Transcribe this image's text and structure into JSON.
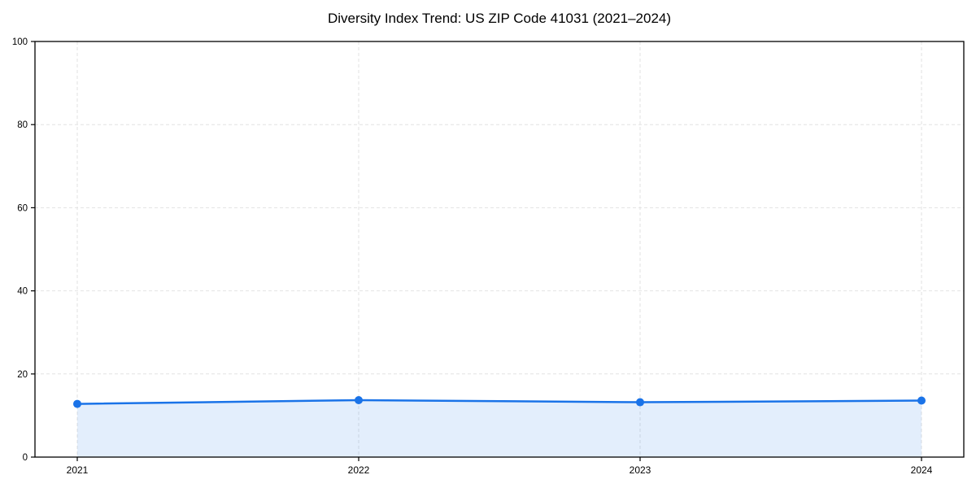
{
  "figure": {
    "background": "#ffffff"
  },
  "chart_data": {
    "type": "area",
    "title": "Diversity Index Trend: US ZIP Code 41031 (2021–2024)",
    "categories": [
      "2021",
      "2022",
      "2023",
      "2024"
    ],
    "values": [
      12.8,
      13.7,
      13.2,
      13.6
    ],
    "xlabel": "",
    "ylabel": "",
    "ylim": [
      0,
      100
    ],
    "yticks": [
      0,
      20,
      40,
      60,
      80,
      100
    ],
    "grid": "dashed, both axes, at every tick",
    "legend_position": "none",
    "line_color": "#1a73e8",
    "marker": "circle",
    "marker_color": "#1a73e8",
    "fill_color": "#1a73e8",
    "fill_opacity": 0.12,
    "grid_color": "#e2e2e2",
    "axis_color": "#000000",
    "tick_label_color": "#000000"
  }
}
